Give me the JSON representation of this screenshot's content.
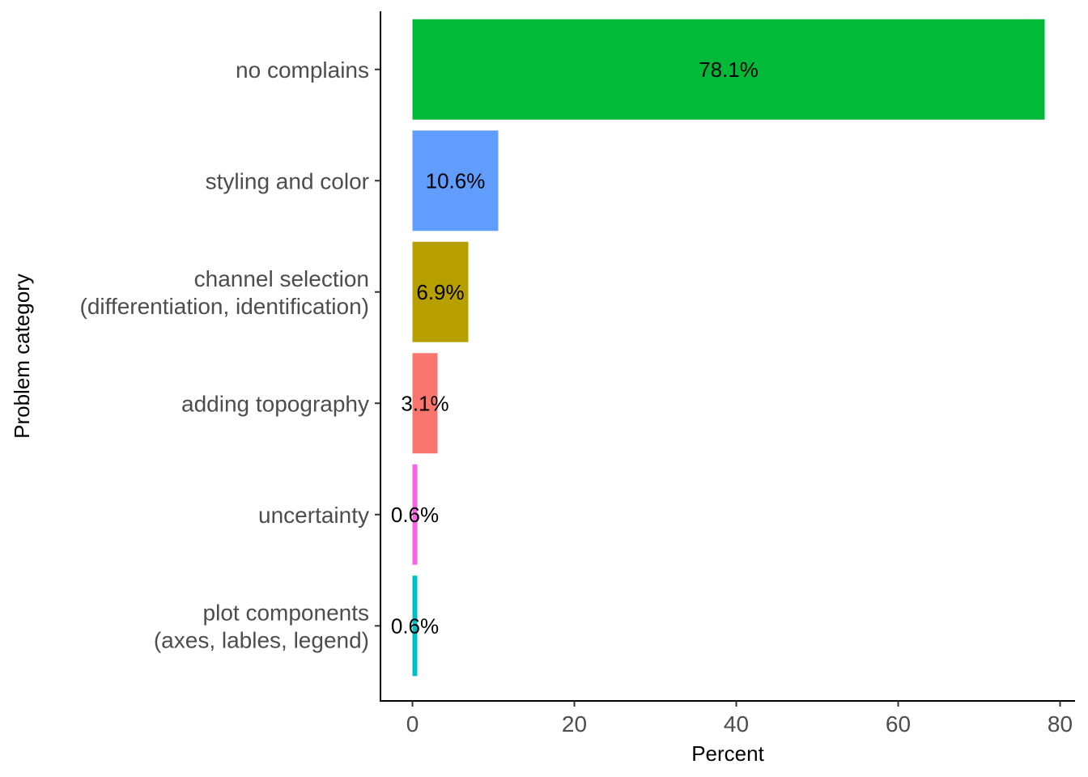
{
  "chart_data": {
    "type": "bar",
    "orientation": "horizontal",
    "title": "",
    "xlabel": "Percent",
    "ylabel": "Problem category",
    "xlim": [
      0,
      80
    ],
    "xticks": [
      0,
      20,
      40,
      60,
      80
    ],
    "grid": false,
    "legend": "none",
    "categories": [
      "no complains",
      "styling and color",
      "channel selection\n(differentiation, identification)",
      "adding topography",
      "uncertainty",
      "plot components\n(axes, lables, legend)"
    ],
    "values": [
      78.1,
      10.6,
      6.9,
      3.1,
      0.6,
      0.6
    ],
    "labels": [
      "78.1%",
      "10.6%",
      "6.9%",
      "3.1%",
      "0.6%",
      "0.6%"
    ],
    "colors": [
      "#00BA38",
      "#619CFF",
      "#B79F00",
      "#F8766D",
      "#F564E3",
      "#00BFC4"
    ]
  }
}
